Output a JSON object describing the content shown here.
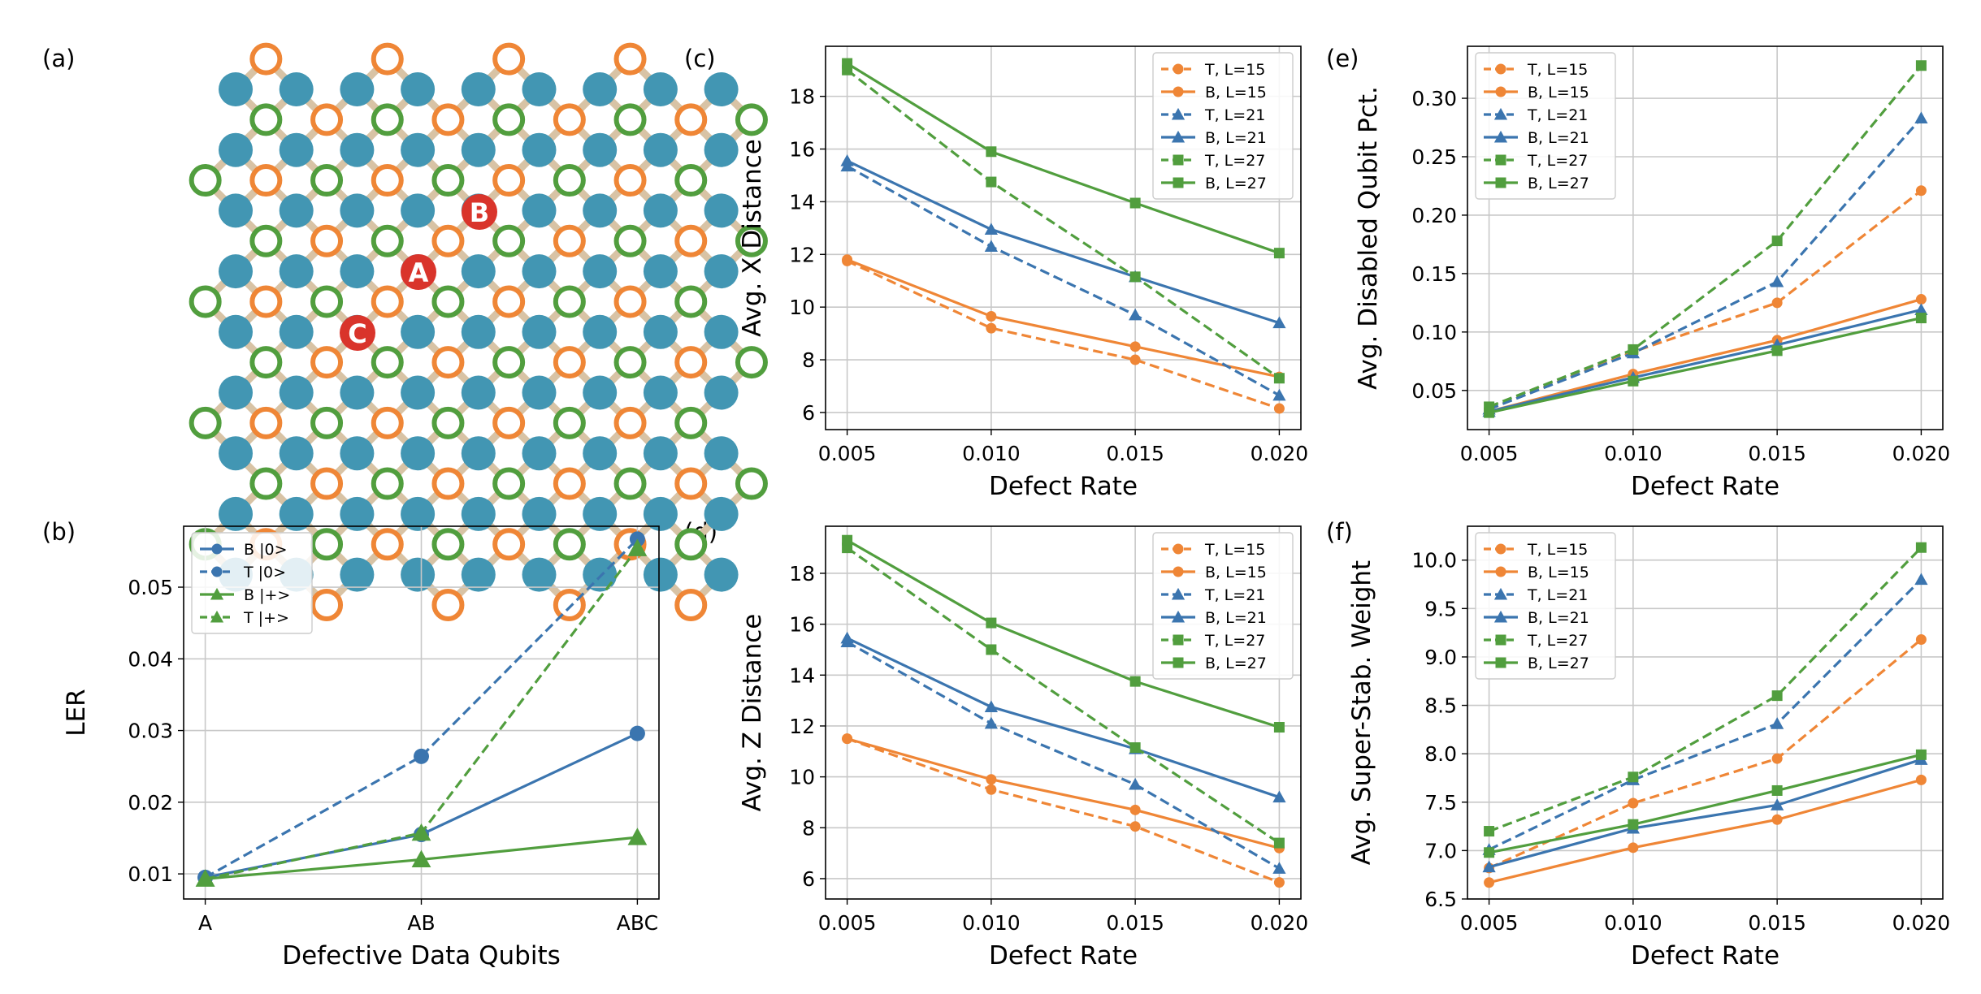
{
  "colors": {
    "orange": "#ef8636",
    "blue": "#3b75af",
    "green": "#519e3e",
    "teal": "#4296b3",
    "bond": "#d8c3a5",
    "marker_red": "#d9342b",
    "grid": "#c8c8c8"
  },
  "panel_labels": {
    "a": "(a)",
    "b": "(b)",
    "c": "(c)",
    "d": "(d)",
    "e": "(e)",
    "f": "(f)"
  },
  "lattice": {
    "legend": "data qubits (filled teal), X-type and Z-type ancillas (open orange / open green rings); defective data qubits marked A, B, C",
    "marker_labels": [
      "A",
      "B",
      "C"
    ]
  },
  "chart_data": [
    {
      "id": "b",
      "type": "line",
      "title": "",
      "xlabel": "Defective Data Qubits",
      "ylabel": "LER",
      "categories": [
        "A",
        "AB",
        "ABC"
      ],
      "ylim": [
        0.0065,
        0.0585
      ],
      "yticks": [
        0.01,
        0.02,
        0.03,
        0.04,
        0.05
      ],
      "ytick_labels": [
        "0.01",
        "0.02",
        "0.03",
        "0.04",
        "0.05"
      ],
      "grid": true,
      "legend_position": "top-left",
      "series": [
        {
          "name": "B |0>",
          "color": "#3b75af",
          "dash": "solid",
          "marker": "circle",
          "values": [
            0.0095,
            0.0155,
            0.0296
          ]
        },
        {
          "name": "T |0>",
          "color": "#3b75af",
          "dash": "dashed",
          "marker": "circle",
          "values": [
            0.0095,
            0.0264,
            0.0567
          ]
        },
        {
          "name": "B |+>",
          "color": "#519e3e",
          "dash": "solid",
          "marker": "triangle",
          "values": [
            0.0093,
            0.012,
            0.0151
          ]
        },
        {
          "name": "T |+>",
          "color": "#519e3e",
          "dash": "dashed",
          "marker": "triangle",
          "values": [
            0.0093,
            0.0157,
            0.0554
          ]
        }
      ]
    },
    {
      "id": "c",
      "type": "line",
      "title": "",
      "xlabel": "Defect Rate",
      "ylabel": "Avg. X Distance",
      "x": [
        0.005,
        0.01,
        0.015,
        0.02
      ],
      "xtick_labels": [
        "0.005",
        "0.010",
        "0.015",
        "0.020"
      ],
      "xlim": [
        0.00425,
        0.02075
      ],
      "ylim": [
        5.35,
        19.9
      ],
      "yticks": [
        6,
        8,
        10,
        12,
        14,
        16,
        18
      ],
      "ytick_labels": [
        "6",
        "8",
        "10",
        "12",
        "14",
        "16",
        "18"
      ],
      "grid": true,
      "legend_position": "top-right",
      "series": [
        {
          "name": "T, L=15",
          "color": "#ef8636",
          "dash": "dashed",
          "marker": "circle",
          "values": [
            11.75,
            9.2,
            8.0,
            6.15
          ]
        },
        {
          "name": "B, L=15",
          "color": "#ef8636",
          "dash": "solid",
          "marker": "circle",
          "values": [
            11.8,
            9.65,
            8.5,
            7.35
          ]
        },
        {
          "name": "T, L=21",
          "color": "#3b75af",
          "dash": "dashed",
          "marker": "triangle",
          "values": [
            15.35,
            12.3,
            9.7,
            6.65
          ]
        },
        {
          "name": "B, L=21",
          "color": "#3b75af",
          "dash": "solid",
          "marker": "triangle",
          "values": [
            15.55,
            12.95,
            11.15,
            9.4
          ]
        },
        {
          "name": "T, L=27",
          "color": "#519e3e",
          "dash": "dashed",
          "marker": "square",
          "values": [
            19.0,
            14.75,
            11.15,
            7.3
          ]
        },
        {
          "name": "B, L=27",
          "color": "#519e3e",
          "dash": "solid",
          "marker": "square",
          "values": [
            19.25,
            15.9,
            13.95,
            12.05
          ]
        }
      ]
    },
    {
      "id": "d",
      "type": "line",
      "title": "",
      "xlabel": "Defect Rate",
      "ylabel": "Avg. Z Distance",
      "x": [
        0.005,
        0.01,
        0.015,
        0.02
      ],
      "xtick_labels": [
        "0.005",
        "0.010",
        "0.015",
        "0.020"
      ],
      "xlim": [
        0.00425,
        0.02075
      ],
      "ylim": [
        5.2,
        19.85
      ],
      "yticks": [
        6,
        8,
        10,
        12,
        14,
        16,
        18
      ],
      "ytick_labels": [
        "6",
        "8",
        "10",
        "12",
        "14",
        "16",
        "18"
      ],
      "grid": true,
      "legend_position": "top-right",
      "series": [
        {
          "name": "T, L=15",
          "color": "#ef8636",
          "dash": "dashed",
          "marker": "circle",
          "values": [
            11.5,
            9.5,
            8.05,
            5.85
          ]
        },
        {
          "name": "B, L=15",
          "color": "#ef8636",
          "dash": "solid",
          "marker": "circle",
          "values": [
            11.5,
            9.9,
            8.7,
            7.2
          ]
        },
        {
          "name": "T, L=21",
          "color": "#3b75af",
          "dash": "dashed",
          "marker": "triangle",
          "values": [
            15.3,
            12.1,
            9.7,
            6.4
          ]
        },
        {
          "name": "B, L=21",
          "color": "#3b75af",
          "dash": "solid",
          "marker": "triangle",
          "values": [
            15.45,
            12.75,
            11.1,
            9.2
          ]
        },
        {
          "name": "T, L=27",
          "color": "#519e3e",
          "dash": "dashed",
          "marker": "square",
          "values": [
            19.0,
            15.0,
            11.15,
            7.4
          ]
        },
        {
          "name": "B, L=27",
          "color": "#519e3e",
          "dash": "solid",
          "marker": "square",
          "values": [
            19.3,
            16.05,
            13.75,
            11.95
          ]
        }
      ]
    },
    {
      "id": "e",
      "type": "line",
      "title": "",
      "xlabel": "Defect Rate",
      "ylabel": "Avg. Disabled Qubit Pct.",
      "x": [
        0.005,
        0.01,
        0.015,
        0.02
      ],
      "xtick_labels": [
        "0.005",
        "0.010",
        "0.015",
        "0.020"
      ],
      "xlim": [
        0.00425,
        0.02075
      ],
      "ylim": [
        0.0165,
        0.3445
      ],
      "yticks": [
        0.05,
        0.1,
        0.15,
        0.2,
        0.25,
        0.3
      ],
      "ytick_labels": [
        "0.05",
        "0.10",
        "0.15",
        "0.20",
        "0.25",
        "0.30"
      ],
      "grid": true,
      "legend_position": "top-left",
      "series": [
        {
          "name": "T, L=15",
          "color": "#ef8636",
          "dash": "dashed",
          "marker": "circle",
          "values": [
            0.034,
            0.083,
            0.125,
            0.221
          ]
        },
        {
          "name": "B, L=15",
          "color": "#ef8636",
          "dash": "solid",
          "marker": "circle",
          "values": [
            0.032,
            0.064,
            0.093,
            0.128
          ]
        },
        {
          "name": "T, L=21",
          "color": "#3b75af",
          "dash": "dashed",
          "marker": "triangle",
          "values": [
            0.034,
            0.082,
            0.143,
            0.283
          ]
        },
        {
          "name": "B, L=21",
          "color": "#3b75af",
          "dash": "solid",
          "marker": "triangle",
          "values": [
            0.032,
            0.061,
            0.089,
            0.119
          ]
        },
        {
          "name": "T, L=27",
          "color": "#519e3e",
          "dash": "dashed",
          "marker": "square",
          "values": [
            0.036,
            0.085,
            0.178,
            0.328
          ]
        },
        {
          "name": "B, L=27",
          "color": "#519e3e",
          "dash": "solid",
          "marker": "square",
          "values": [
            0.031,
            0.058,
            0.084,
            0.112
          ]
        }
      ]
    },
    {
      "id": "f",
      "type": "line",
      "title": "",
      "xlabel": "Defect Rate",
      "ylabel": "Avg. Super-Stab. Weight",
      "x": [
        0.005,
        0.01,
        0.015,
        0.02
      ],
      "xtick_labels": [
        "0.005",
        "0.010",
        "0.015",
        "0.020"
      ],
      "xlim": [
        0.00425,
        0.02075
      ],
      "ylim": [
        6.5,
        10.35
      ],
      "yticks": [
        6.5,
        7.0,
        7.5,
        8.0,
        8.5,
        9.0,
        9.5,
        10.0
      ],
      "ytick_labels": [
        "6.5",
        "7.0",
        "7.5",
        "8.0",
        "8.5",
        "9.0",
        "9.5",
        "10.0"
      ],
      "grid": true,
      "legend_position": "top-left",
      "series": [
        {
          "name": "T, L=15",
          "color": "#ef8636",
          "dash": "dashed",
          "marker": "circle",
          "values": [
            6.82,
            7.49,
            7.95,
            9.18
          ]
        },
        {
          "name": "B, L=15",
          "color": "#ef8636",
          "dash": "solid",
          "marker": "circle",
          "values": [
            6.67,
            7.03,
            7.32,
            7.73
          ]
        },
        {
          "name": "T, L=21",
          "color": "#3b75af",
          "dash": "dashed",
          "marker": "triangle",
          "values": [
            7.01,
            7.73,
            8.31,
            9.8
          ]
        },
        {
          "name": "B, L=21",
          "color": "#3b75af",
          "dash": "solid",
          "marker": "triangle",
          "values": [
            6.83,
            7.23,
            7.47,
            7.94
          ]
        },
        {
          "name": "T, L=27",
          "color": "#519e3e",
          "dash": "dashed",
          "marker": "square",
          "values": [
            7.2,
            7.76,
            8.6,
            10.13
          ]
        },
        {
          "name": "B, L=27",
          "color": "#519e3e",
          "dash": "solid",
          "marker": "square",
          "values": [
            6.98,
            7.27,
            7.62,
            7.99
          ]
        }
      ]
    }
  ]
}
